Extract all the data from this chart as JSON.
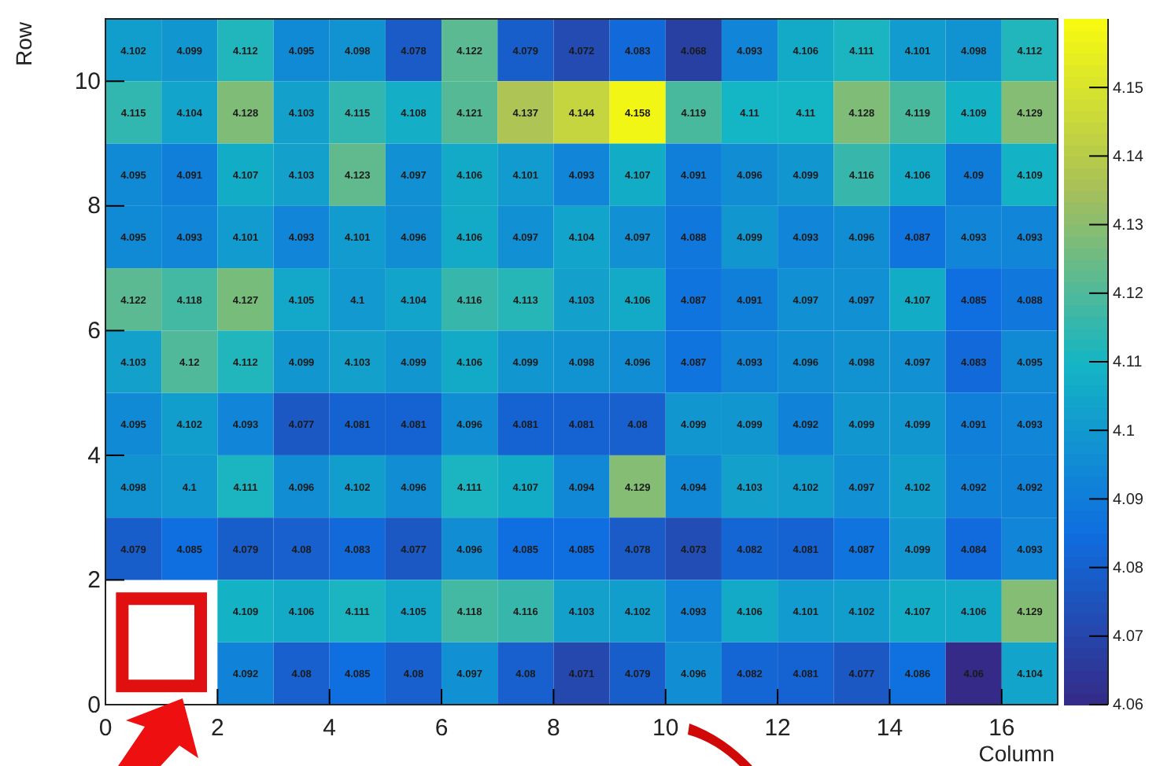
{
  "chart_data": {
    "type": "heatmap",
    "xlabel": "Column",
    "ylabel": "Row",
    "x": [
      0.5,
      1.5,
      2.5,
      3.5,
      4.5,
      5.5,
      6.5,
      7.5,
      8.5,
      9.5,
      10.5,
      11.5,
      12.5,
      13.5,
      14.5,
      15.5,
      16.5
    ],
    "y": [
      10.5,
      9.5,
      8.5,
      7.5,
      6.5,
      5.5,
      4.5,
      3.5,
      2.5,
      1.5,
      0.5
    ],
    "xlim": [
      0,
      17
    ],
    "xticks": [
      0,
      2,
      4,
      6,
      8,
      10,
      12,
      14,
      16
    ],
    "ylim": [
      0,
      11
    ],
    "yticks": [
      0,
      2,
      4,
      6,
      8,
      10
    ],
    "clim": [
      4.06,
      4.16
    ],
    "cticks": [
      4.06,
      4.07,
      4.08,
      4.09,
      4.1,
      4.11,
      4.12,
      4.13,
      4.14,
      4.15
    ],
    "data_labels": true,
    "cells": [
      [
        4.102,
        4.099,
        4.112,
        4.095,
        4.098,
        4.078,
        4.122,
        4.079,
        4.072,
        4.083,
        4.068,
        4.093,
        4.106,
        4.111,
        4.101,
        4.098,
        4.112
      ],
      [
        4.115,
        4.104,
        4.128,
        4.103,
        4.115,
        4.108,
        4.121,
        4.137,
        4.144,
        4.158,
        4.119,
        4.11,
        4.11,
        4.128,
        4.119,
        4.109,
        4.129
      ],
      [
        4.095,
        4.091,
        4.107,
        4.103,
        4.123,
        4.097,
        4.106,
        4.101,
        4.093,
        4.107,
        4.091,
        4.096,
        4.099,
        4.116,
        4.106,
        4.09,
        4.109
      ],
      [
        4.095,
        4.093,
        4.101,
        4.093,
        4.101,
        4.096,
        4.106,
        4.097,
        4.104,
        4.097,
        4.088,
        4.099,
        4.093,
        4.096,
        4.087,
        4.093,
        4.093
      ],
      [
        4.122,
        4.118,
        4.127,
        4.105,
        4.1,
        4.104,
        4.116,
        4.113,
        4.103,
        4.106,
        4.087,
        4.091,
        4.097,
        4.097,
        4.107,
        4.085,
        4.088
      ],
      [
        4.103,
        4.12,
        4.112,
        4.099,
        4.103,
        4.099,
        4.106,
        4.099,
        4.098,
        4.096,
        4.087,
        4.093,
        4.096,
        4.098,
        4.097,
        4.083,
        4.095
      ],
      [
        4.095,
        4.102,
        4.093,
        4.077,
        4.081,
        4.081,
        4.096,
        4.081,
        4.081,
        4.08,
        4.099,
        4.099,
        4.092,
        4.099,
        4.099,
        4.091,
        4.093
      ],
      [
        4.098,
        4.1,
        4.111,
        4.096,
        4.102,
        4.096,
        4.111,
        4.107,
        4.094,
        4.129,
        4.094,
        4.103,
        4.102,
        4.097,
        4.102,
        4.092,
        4.092
      ],
      [
        4.079,
        4.085,
        4.079,
        4.08,
        4.083,
        4.077,
        4.096,
        4.085,
        4.085,
        4.078,
        4.073,
        4.082,
        4.081,
        4.087,
        4.099,
        4.084,
        4.093
      ],
      [
        null,
        null,
        4.109,
        4.106,
        4.111,
        4.105,
        4.118,
        4.116,
        4.103,
        4.102,
        4.093,
        4.106,
        4.101,
        4.102,
        4.107,
        4.106,
        4.129
      ],
      [
        null,
        null,
        4.092,
        4.08,
        4.085,
        4.08,
        4.097,
        4.08,
        4.071,
        4.079,
        4.096,
        4.082,
        4.081,
        4.077,
        4.086,
        4.06,
        4.104
      ]
    ]
  }
}
